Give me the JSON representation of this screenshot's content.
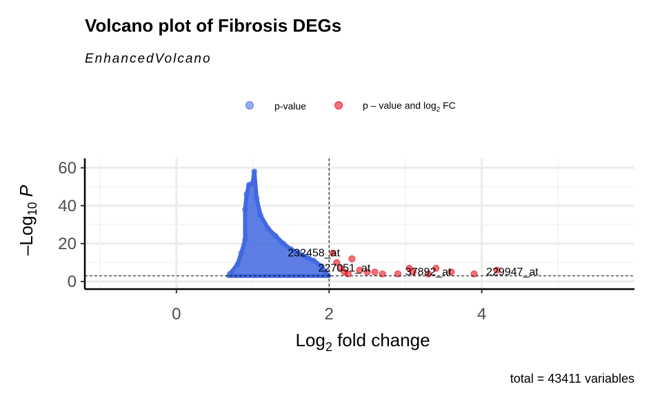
{
  "chart_data": {
    "type": "scatter",
    "title": "Volcano plot of Fibrosis DEGs",
    "subtitle": "EnhancedVolcano",
    "xlabel": "Log2 fold change",
    "ylabel": "-Log10 P",
    "xlim": [
      -1.2,
      6
    ],
    "ylim": [
      -4,
      65
    ],
    "xticks": [
      0,
      2,
      4
    ],
    "xtick_labels": [
      "0",
      "2",
      "4"
    ],
    "yticks": [
      0,
      20,
      40,
      60
    ],
    "ytick_labels": [
      "0",
      "20",
      "40",
      "60"
    ],
    "grid": true,
    "legend_position": "top",
    "thresholds": {
      "x": 2,
      "y": 3
    },
    "caption": "total = 43411 variables",
    "series": [
      {
        "name": "p-value",
        "color": "#4169E1",
        "points": [
          [
            0.7,
            4
          ],
          [
            0.8,
            9
          ],
          [
            0.85,
            15
          ],
          [
            0.9,
            22
          ],
          [
            0.9,
            38
          ],
          [
            0.92,
            46
          ],
          [
            0.95,
            51
          ],
          [
            1.0,
            52
          ],
          [
            1.02,
            58
          ],
          [
            1.05,
            44
          ],
          [
            1.1,
            35
          ],
          [
            1.2,
            28
          ],
          [
            1.3,
            24
          ],
          [
            1.4,
            20
          ],
          [
            1.5,
            17
          ],
          [
            1.6,
            15
          ],
          [
            1.7,
            13
          ],
          [
            1.8,
            11
          ],
          [
            1.9,
            8
          ],
          [
            1.95,
            5
          ]
        ]
      },
      {
        "name": "p–value and log2 FC",
        "color": "#E8000B",
        "points": [
          [
            2.05,
            15
          ],
          [
            2.1,
            10
          ],
          [
            2.15,
            7
          ],
          [
            2.2,
            5
          ],
          [
            2.25,
            4
          ],
          [
            2.3,
            12
          ],
          [
            2.4,
            6
          ],
          [
            2.5,
            5
          ],
          [
            2.6,
            5
          ],
          [
            2.7,
            4
          ],
          [
            2.9,
            4
          ],
          [
            3.05,
            7
          ],
          [
            3.1,
            5
          ],
          [
            3.3,
            4
          ],
          [
            3.4,
            7
          ],
          [
            3.6,
            5
          ],
          [
            3.9,
            4
          ],
          [
            4.2,
            6
          ]
        ]
      }
    ],
    "labels": [
      {
        "text": "232458_at",
        "x": 1.8,
        "y": 15
      },
      {
        "text": "227051_at",
        "x": 2.2,
        "y": 7
      },
      {
        "text": "37892_at",
        "x": 3.3,
        "y": 5
      },
      {
        "text": "229947_at",
        "x": 4.4,
        "y": 5
      }
    ]
  },
  "legend": {
    "item1": "p-value",
    "item2_main": "p – value and log",
    "item2_sub": "2",
    "item2_tail": " FC"
  },
  "axes": {
    "x_title_main": "Log",
    "x_title_sub": "2",
    "x_title_tail": " fold change",
    "y_title_prefix": "–Log",
    "y_title_sub": "10",
    "y_title_tail": " P"
  }
}
